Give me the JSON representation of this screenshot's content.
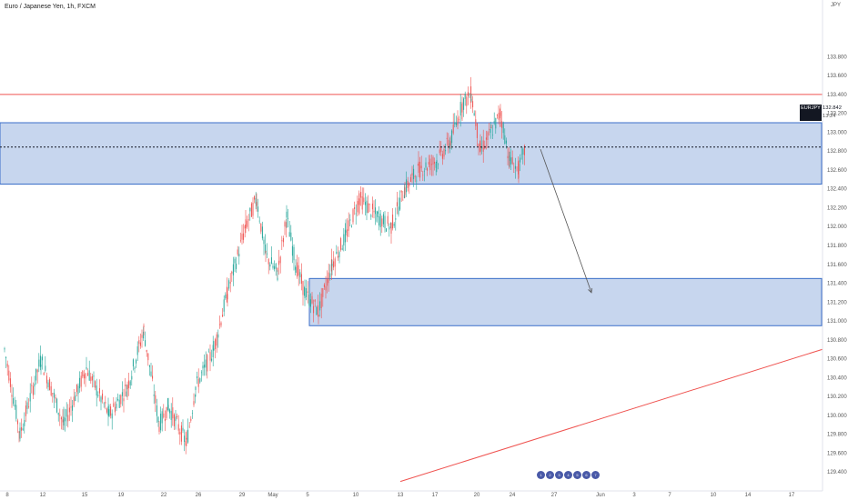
{
  "header": {
    "title": "Euro / Japanese Yen, 1h, FXCM",
    "corner_label": "JPY"
  },
  "price_label": {
    "symbol": "EURJPY",
    "price": "132.842",
    "countdown": "13:24",
    "value": 132.842
  },
  "events": [
    "1",
    "2",
    "3",
    "4",
    "5",
    "6",
    "7"
  ],
  "colors": {
    "up": "#26a69a",
    "down": "#ef5350",
    "zone_fill": "#c7d6ee",
    "zone_border": "#3b6fc9",
    "resistance": "#ef5350",
    "trendline": "#ef5350",
    "arrow": "#555555",
    "price_line": "#131722"
  },
  "chart_data": {
    "type": "candlestick",
    "title": "Euro / Japanese Yen, 1h, FXCM",
    "ylim": [
      129.2,
      134.4
    ],
    "y_ticks": [
      "129.400",
      "129.600",
      "129.800",
      "130.000",
      "130.200",
      "130.400",
      "130.600",
      "130.800",
      "131.000",
      "131.200",
      "131.400",
      "131.600",
      "131.800",
      "132.000",
      "132.200",
      "132.400",
      "132.600",
      "132.800",
      "133.000",
      "133.200",
      "133.400",
      "133.600",
      "133.800"
    ],
    "x_ticks": [
      "8",
      "12",
      "15",
      "19",
      "22",
      "26",
      "29",
      "May",
      "5",
      "10",
      "13",
      "17",
      "20",
      "24",
      "27",
      "Jun",
      "3",
      "7",
      "10",
      "14",
      "17"
    ],
    "x_tick_index": [
      8,
      47,
      93,
      133,
      180,
      218,
      266,
      300,
      338,
      391,
      440,
      478,
      524,
      563,
      609,
      660,
      697,
      736,
      784,
      822,
      870
    ],
    "price_path": [
      [
        5,
        130.7
      ],
      [
        22,
        129.8
      ],
      [
        45,
        130.6
      ],
      [
        70,
        129.9
      ],
      [
        95,
        130.5
      ],
      [
        120,
        130.0
      ],
      [
        140,
        130.3
      ],
      [
        158,
        130.9
      ],
      [
        175,
        129.9
      ],
      [
        185,
        130.1
      ],
      [
        205,
        129.7
      ],
      [
        215,
        130.3
      ],
      [
        235,
        130.7
      ],
      [
        250,
        131.3
      ],
      [
        270,
        132.0
      ],
      [
        282,
        132.3
      ],
      [
        292,
        131.7
      ],
      [
        305,
        131.5
      ],
      [
        315,
        132.1
      ],
      [
        325,
        131.6
      ],
      [
        335,
        131.3
      ],
      [
        350,
        131.1
      ],
      [
        365,
        131.6
      ],
      [
        380,
        131.9
      ],
      [
        395,
        132.3
      ],
      [
        415,
        132.1
      ],
      [
        430,
        132.0
      ],
      [
        445,
        132.4
      ],
      [
        460,
        132.6
      ],
      [
        480,
        132.7
      ],
      [
        495,
        132.9
      ],
      [
        508,
        133.3
      ],
      [
        518,
        133.4
      ],
      [
        528,
        132.8
      ],
      [
        540,
        133.0
      ],
      [
        550,
        133.2
      ],
      [
        560,
        132.7
      ],
      [
        570,
        132.6
      ],
      [
        578,
        132.842
      ]
    ],
    "zones": [
      {
        "name": "supply",
        "top": 133.1,
        "bottom": 132.45,
        "x_start": 0,
        "x_end": 903
      },
      {
        "name": "demand",
        "top": 131.45,
        "bottom": 130.95,
        "x_start": 340,
        "x_end": 903
      }
    ],
    "lines": [
      {
        "name": "resistance",
        "y1": 133.4,
        "y2": 133.4
      },
      {
        "name": "trendline",
        "y1": 129.3,
        "y2": 130.7
      }
    ],
    "arrow": {
      "from_price": 132.82,
      "to_price": 131.3
    }
  }
}
